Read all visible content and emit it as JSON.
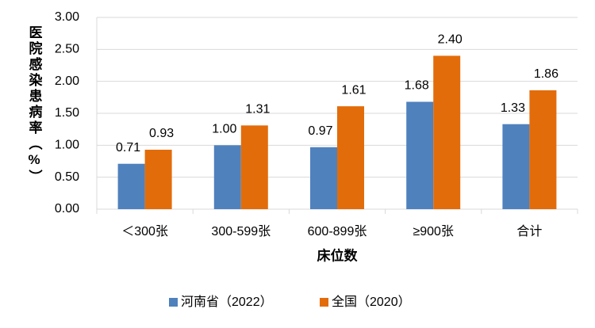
{
  "chart_data": {
    "type": "bar",
    "y_label": "医院感染患病率（%）",
    "x_label": "床位数",
    "categories": [
      "＜300张",
      "300-599张",
      "600-899张",
      "≥900张",
      "合计"
    ],
    "series": [
      {
        "name": "河南省（2022）",
        "color": "#4f81bd",
        "values": [
          0.71,
          1.0,
          0.97,
          1.68,
          1.33
        ],
        "value_labels": [
          "0.71",
          "1.00",
          "0.97",
          "1.68",
          "1.33"
        ]
      },
      {
        "name": "全国（2020）",
        "color": "#e36c0a",
        "values": [
          0.93,
          1.31,
          1.61,
          2.4,
          1.86
        ],
        "value_labels": [
          "0.93",
          "1.31",
          "1.61",
          "2.40",
          "1.86"
        ]
      }
    ],
    "ylim": [
      0,
      3
    ],
    "yticks": [
      {
        "value": 0,
        "label": "0.00"
      },
      {
        "value": 0.5,
        "label": "0.50"
      },
      {
        "value": 1,
        "label": "1.00"
      },
      {
        "value": 1.5,
        "label": "1.50"
      },
      {
        "value": 2,
        "label": "2.00"
      },
      {
        "value": 2.5,
        "label": "2.50"
      },
      {
        "value": 3,
        "label": "3.00"
      }
    ],
    "grid": true,
    "legend": "bottom"
  }
}
